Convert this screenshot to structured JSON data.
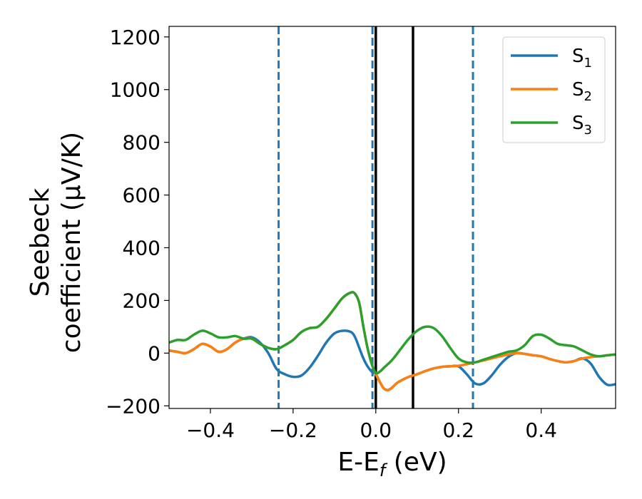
{
  "chart_data": {
    "type": "line",
    "xlabel": "E-E",
    "xlabel_sub": "f",
    "xlabel_unit": "(eV)",
    "ylabel_line1": "Seebeck",
    "ylabel_line2": "coefficient  (μV/K)",
    "xlim": [
      -0.5,
      0.58
    ],
    "ylim": [
      -210,
      1240
    ],
    "xticks": [
      -0.4,
      -0.2,
      0.0,
      0.2,
      0.4
    ],
    "xtick_labels": [
      "−0.4",
      "−0.2",
      "0.0",
      "0.2",
      "0.4"
    ],
    "yticks": [
      -200,
      0,
      200,
      400,
      600,
      800,
      1000,
      1200
    ],
    "ytick_labels": [
      "−200",
      "0",
      "200",
      "400",
      "600",
      "800",
      "1000",
      "1200"
    ],
    "legend_position": "top-right",
    "vlines": [
      {
        "x": -0.235,
        "style": "dashed",
        "color": "#1f77b4"
      },
      {
        "x": -0.008,
        "style": "dashed",
        "color": "#1f77b4"
      },
      {
        "x": 0.0,
        "style": "solid",
        "color": "#000000"
      },
      {
        "x": 0.09,
        "style": "solid",
        "color": "#000000"
      },
      {
        "x": 0.235,
        "style": "dashed",
        "color": "#1f77b4"
      }
    ],
    "series": [
      {
        "name": "S",
        "sub": "1",
        "color": "#1f77b4",
        "x": [
          -0.5,
          -0.48,
          -0.46,
          -0.44,
          -0.42,
          -0.4,
          -0.38,
          -0.36,
          -0.34,
          -0.32,
          -0.3,
          -0.28,
          -0.26,
          -0.24,
          -0.22,
          -0.2,
          -0.18,
          -0.16,
          -0.14,
          -0.12,
          -0.1,
          -0.08,
          -0.06,
          -0.05,
          -0.04,
          -0.03,
          -0.02,
          -0.01,
          0.0,
          0.01,
          0.02,
          0.03,
          0.04,
          0.05,
          0.06,
          0.08,
          0.1,
          0.12,
          0.14,
          0.16,
          0.18,
          0.2,
          0.22,
          0.24,
          0.26,
          0.28,
          0.3,
          0.32,
          0.34,
          0.36,
          0.38,
          0.4,
          0.42,
          0.44,
          0.46,
          0.48,
          0.5,
          0.52,
          0.54,
          0.56,
          0.58
        ],
        "y": [
          10,
          5,
          0,
          15,
          35,
          25,
          5,
          15,
          40,
          55,
          60,
          40,
          0,
          -60,
          -80,
          -90,
          -85,
          -55,
          -10,
          40,
          75,
          85,
          80,
          60,
          20,
          -20,
          -50,
          -70,
          -80,
          -110,
          -135,
          -140,
          -130,
          -115,
          -105,
          -90,
          -80,
          -68,
          -58,
          -52,
          -50,
          -50,
          -80,
          -115,
          -115,
          -85,
          -45,
          -15,
          0,
          -3,
          -8,
          -12,
          -22,
          -30,
          -35,
          -30,
          -20,
          -40,
          -90,
          -120,
          -118
        ]
      },
      {
        "name": "S",
        "sub": "2",
        "color": "#ff7f0e",
        "x": [
          -0.5,
          -0.48,
          -0.46,
          -0.44,
          -0.42,
          -0.4,
          -0.38,
          -0.36,
          -0.34,
          -0.32,
          -0.3,
          -0.28,
          -0.26,
          -0.24,
          -0.22,
          -0.2,
          -0.18,
          -0.16,
          -0.14,
          -0.12,
          -0.1,
          -0.08,
          -0.06,
          -0.05,
          -0.04,
          -0.03,
          -0.02,
          -0.01,
          0.0,
          0.01,
          0.02,
          0.03,
          0.04,
          0.05,
          0.06,
          0.08,
          0.1,
          0.12,
          0.14,
          0.16,
          0.18,
          0.2,
          0.22,
          0.24,
          0.26,
          0.28,
          0.3,
          0.32,
          0.34,
          0.36,
          0.38,
          0.4,
          0.42,
          0.44,
          0.46,
          0.48,
          0.5,
          0.52,
          0.54,
          0.56,
          0.58
        ],
        "y": [
          10,
          5,
          0,
          15,
          35,
          25,
          5,
          15,
          40,
          55,
          55,
          35,
          20,
          15,
          30,
          50,
          80,
          95,
          100,
          130,
          170,
          210,
          230,
          225,
          190,
          100,
          20,
          -40,
          -80,
          -110,
          -135,
          -140,
          -130,
          -115,
          -105,
          -90,
          -80,
          -68,
          -58,
          -52,
          -50,
          -48,
          -42,
          -35,
          -28,
          -20,
          -12,
          -5,
          0,
          -3,
          -8,
          -12,
          -22,
          -30,
          -35,
          -30,
          -20,
          -15,
          -12,
          -8,
          -5
        ]
      },
      {
        "name": "S",
        "sub": "3",
        "color": "#2ca02c",
        "x": [
          -0.5,
          -0.48,
          -0.46,
          -0.44,
          -0.42,
          -0.4,
          -0.38,
          -0.36,
          -0.34,
          -0.32,
          -0.3,
          -0.28,
          -0.26,
          -0.24,
          -0.22,
          -0.2,
          -0.18,
          -0.16,
          -0.14,
          -0.12,
          -0.1,
          -0.08,
          -0.06,
          -0.05,
          -0.04,
          -0.03,
          -0.02,
          -0.01,
          0.0,
          0.01,
          0.02,
          0.04,
          0.06,
          0.08,
          0.1,
          0.12,
          0.14,
          0.16,
          0.18,
          0.2,
          0.22,
          0.24,
          0.26,
          0.28,
          0.3,
          0.32,
          0.34,
          0.36,
          0.38,
          0.4,
          0.42,
          0.44,
          0.46,
          0.48,
          0.5,
          0.52,
          0.54,
          0.56,
          0.58
        ],
        "y": [
          40,
          50,
          50,
          70,
          85,
          75,
          60,
          60,
          65,
          55,
          55,
          35,
          20,
          15,
          30,
          50,
          80,
          95,
          100,
          130,
          170,
          210,
          230,
          225,
          190,
          100,
          20,
          -40,
          -75,
          -70,
          -55,
          -25,
          15,
          55,
          85,
          100,
          95,
          65,
          20,
          -20,
          -35,
          -35,
          -25,
          -15,
          -5,
          5,
          10,
          30,
          65,
          70,
          55,
          35,
          30,
          25,
          10,
          -5,
          -12,
          -8,
          -5
        ]
      }
    ]
  }
}
